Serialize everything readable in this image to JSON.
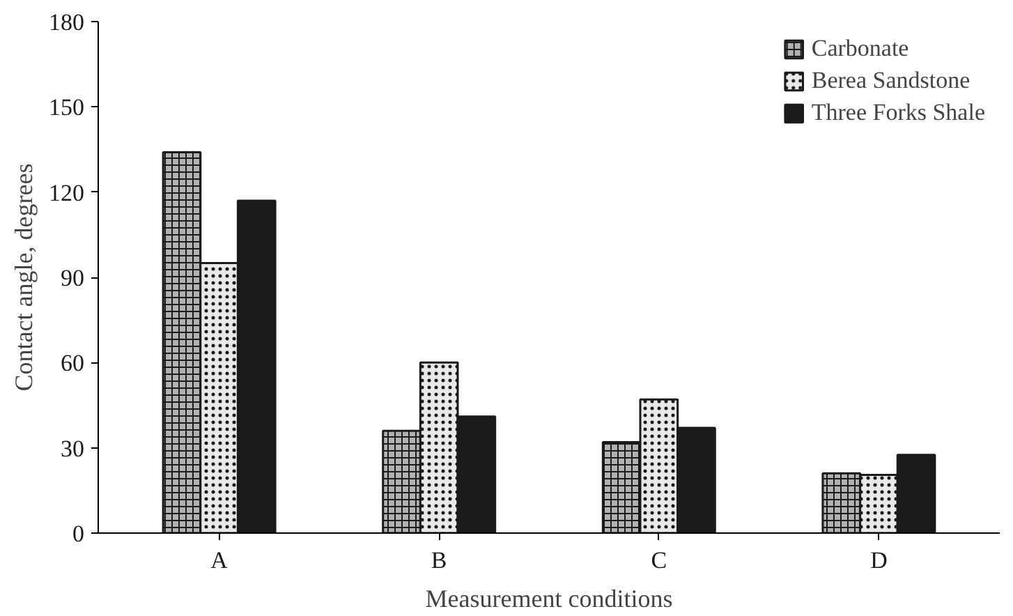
{
  "chart_data": {
    "type": "bar",
    "xlabel": "Measurement conditions",
    "ylabel": "Contact angle, degrees",
    "categories": [
      "A",
      "B",
      "C",
      "D"
    ],
    "series": [
      {
        "name": "Carbonate",
        "color": "#b0b0b0",
        "values": [
          134,
          36,
          32,
          21
        ]
      },
      {
        "name": "Berea Sandstone",
        "color": "#e8e8e8",
        "values": [
          95,
          60,
          47,
          20.5
        ]
      },
      {
        "name": "Three Forks Shale",
        "color": "#1a1a1a",
        "values": [
          117,
          41,
          37,
          27.5
        ]
      }
    ],
    "ylim": [
      0,
      180
    ],
    "yticks": [
      0,
      30,
      60,
      90,
      120,
      150,
      180
    ],
    "grid": false,
    "legend": "top right"
  }
}
